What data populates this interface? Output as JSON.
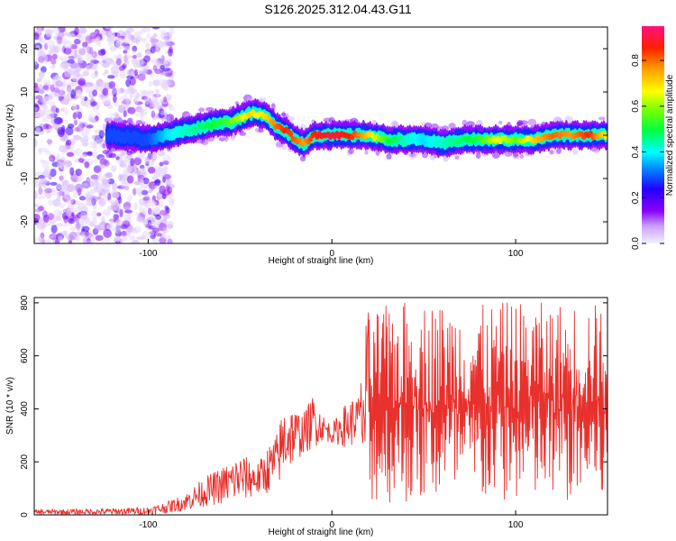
{
  "title": "S126.2025.312.04.43.G11",
  "chart_data": [
    {
      "type": "heatmap",
      "xlabel": "Height of straight line (km)",
      "ylabel": "Frequency (Hz)",
      "xlim": [
        -162,
        150
      ],
      "ylim": [
        -25,
        25
      ],
      "xticks": [
        -100,
        0,
        100
      ],
      "yticks": [
        20,
        10,
        0,
        -10,
        -20
      ],
      "colorbar": {
        "label": "Normalized spectral amplitude",
        "range": [
          0.0,
          0.95
        ],
        "ticks": [
          0.0,
          0.2,
          0.4,
          0.6,
          0.8
        ],
        "colors": [
          "#e6e6fa",
          "#9400d3",
          "#0000ff",
          "#00ffff",
          "#00ff00",
          "#ffff00",
          "#ff8c00",
          "#ff0000",
          "#ff1493"
        ]
      },
      "ridge": {
        "x": [
          -120,
          -100,
          -90,
          -80,
          -70,
          -60,
          -55,
          -50,
          -45,
          -40,
          -35,
          -30,
          -25,
          -20,
          -15,
          -10,
          0,
          10,
          20,
          30,
          40,
          50,
          60,
          70,
          80,
          90,
          100,
          110,
          120,
          130,
          140,
          150
        ],
        "freq": [
          0,
          -1,
          0,
          1,
          2,
          3,
          3,
          4,
          5,
          5,
          4,
          2,
          1,
          -1,
          -2,
          0,
          0,
          0,
          0,
          -1,
          -1,
          -1,
          -2,
          -1,
          -1,
          -1,
          -1,
          -1,
          0,
          0,
          0,
          0
        ],
        "amplitude": [
          0.3,
          0.3,
          0.4,
          0.45,
          0.5,
          0.55,
          0.6,
          0.65,
          0.75,
          0.7,
          0.75,
          0.85,
          0.9,
          0.85,
          0.8,
          0.9,
          0.95,
          0.9,
          0.75,
          0.55,
          0.45,
          0.4,
          0.45,
          0.5,
          0.55,
          0.7,
          0.6,
          0.75,
          0.85,
          0.8,
          0.9,
          0.7
        ]
      },
      "noise_region_x": [
        -162,
        -95
      ]
    },
    {
      "type": "line",
      "xlabel": "Height of straight line (km)",
      "ylabel": "SNR (10 * v/v)",
      "xlim": [
        -162,
        150
      ],
      "ylim": [
        0,
        820
      ],
      "xticks": [
        -100,
        0,
        100
      ],
      "yticks": [
        0,
        200,
        400,
        600,
        800
      ],
      "color": "#e8302c",
      "envelope": {
        "x": [
          -162,
          -120,
          -100,
          -90,
          -80,
          -70,
          -60,
          -50,
          -40,
          -35,
          -30,
          -25,
          -20,
          -15,
          -10,
          -5,
          0,
          5,
          10,
          15,
          18,
          20,
          25,
          40,
          60,
          80,
          100,
          120,
          140,
          150
        ],
        "low": [
          0,
          0,
          0,
          5,
          15,
          30,
          40,
          50,
          70,
          80,
          100,
          150,
          200,
          230,
          250,
          280,
          270,
          260,
          250,
          300,
          80,
          40,
          40,
          40,
          40,
          40,
          40,
          40,
          40,
          40
        ],
        "high": [
          20,
          25,
          30,
          50,
          80,
          140,
          180,
          230,
          200,
          260,
          310,
          450,
          400,
          390,
          460,
          380,
          340,
          400,
          440,
          450,
          700,
          790,
          780,
          810,
          800,
          790,
          810,
          800,
          810,
          780
        ]
      }
    }
  ]
}
